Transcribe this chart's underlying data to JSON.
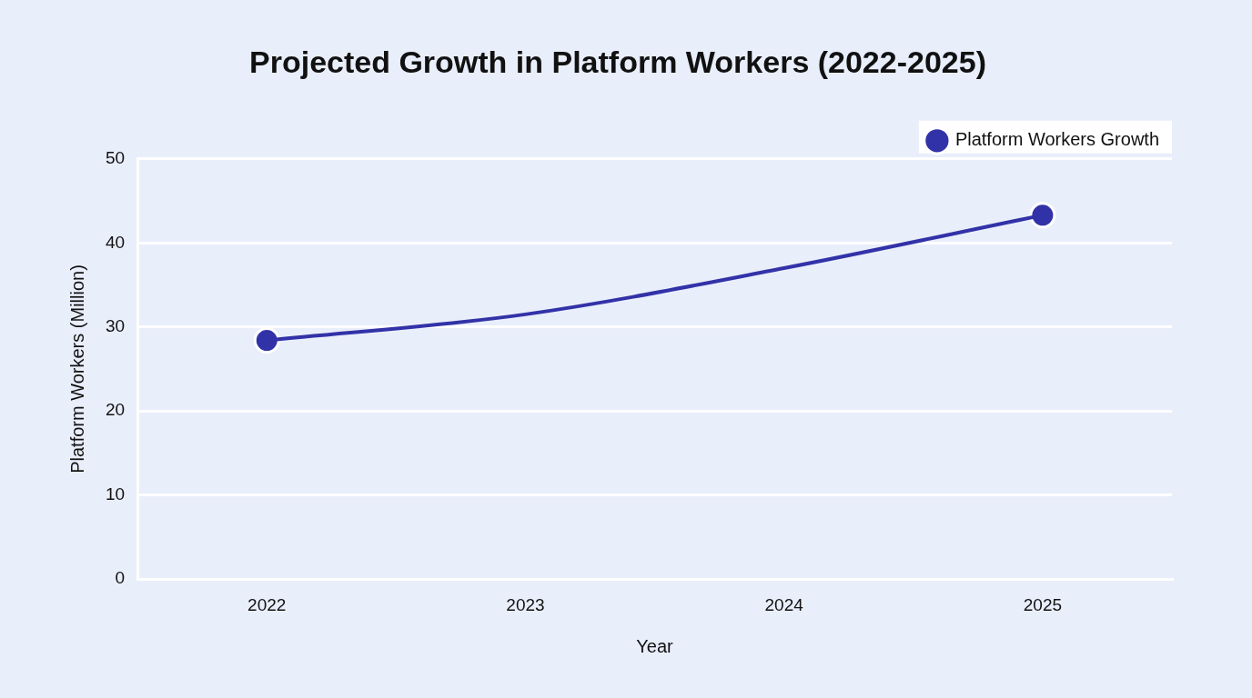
{
  "chart_data": {
    "type": "line",
    "title": "Projected Growth in Platform Workers (2022-2025)",
    "xlabel": "Year",
    "ylabel": "Platform Workers (Million)",
    "categories": [
      "2022",
      "2023",
      "2024",
      "2025"
    ],
    "series": [
      {
        "type": "line",
        "color": "#3232a8",
        "values": [
          28.4,
          31.5,
          37.0,
          43.3
        ],
        "marker": "none"
      },
      {
        "type": "scatter",
        "name": "Platform Workers Growth",
        "color": "#3232a8",
        "values": [
          28.4,
          null,
          null,
          43.3
        ],
        "marker": "circle"
      }
    ],
    "ylim": [
      0,
      50
    ],
    "yticks": [
      0,
      10,
      20,
      30,
      40,
      50
    ],
    "grid": "y",
    "legend": "top right"
  }
}
